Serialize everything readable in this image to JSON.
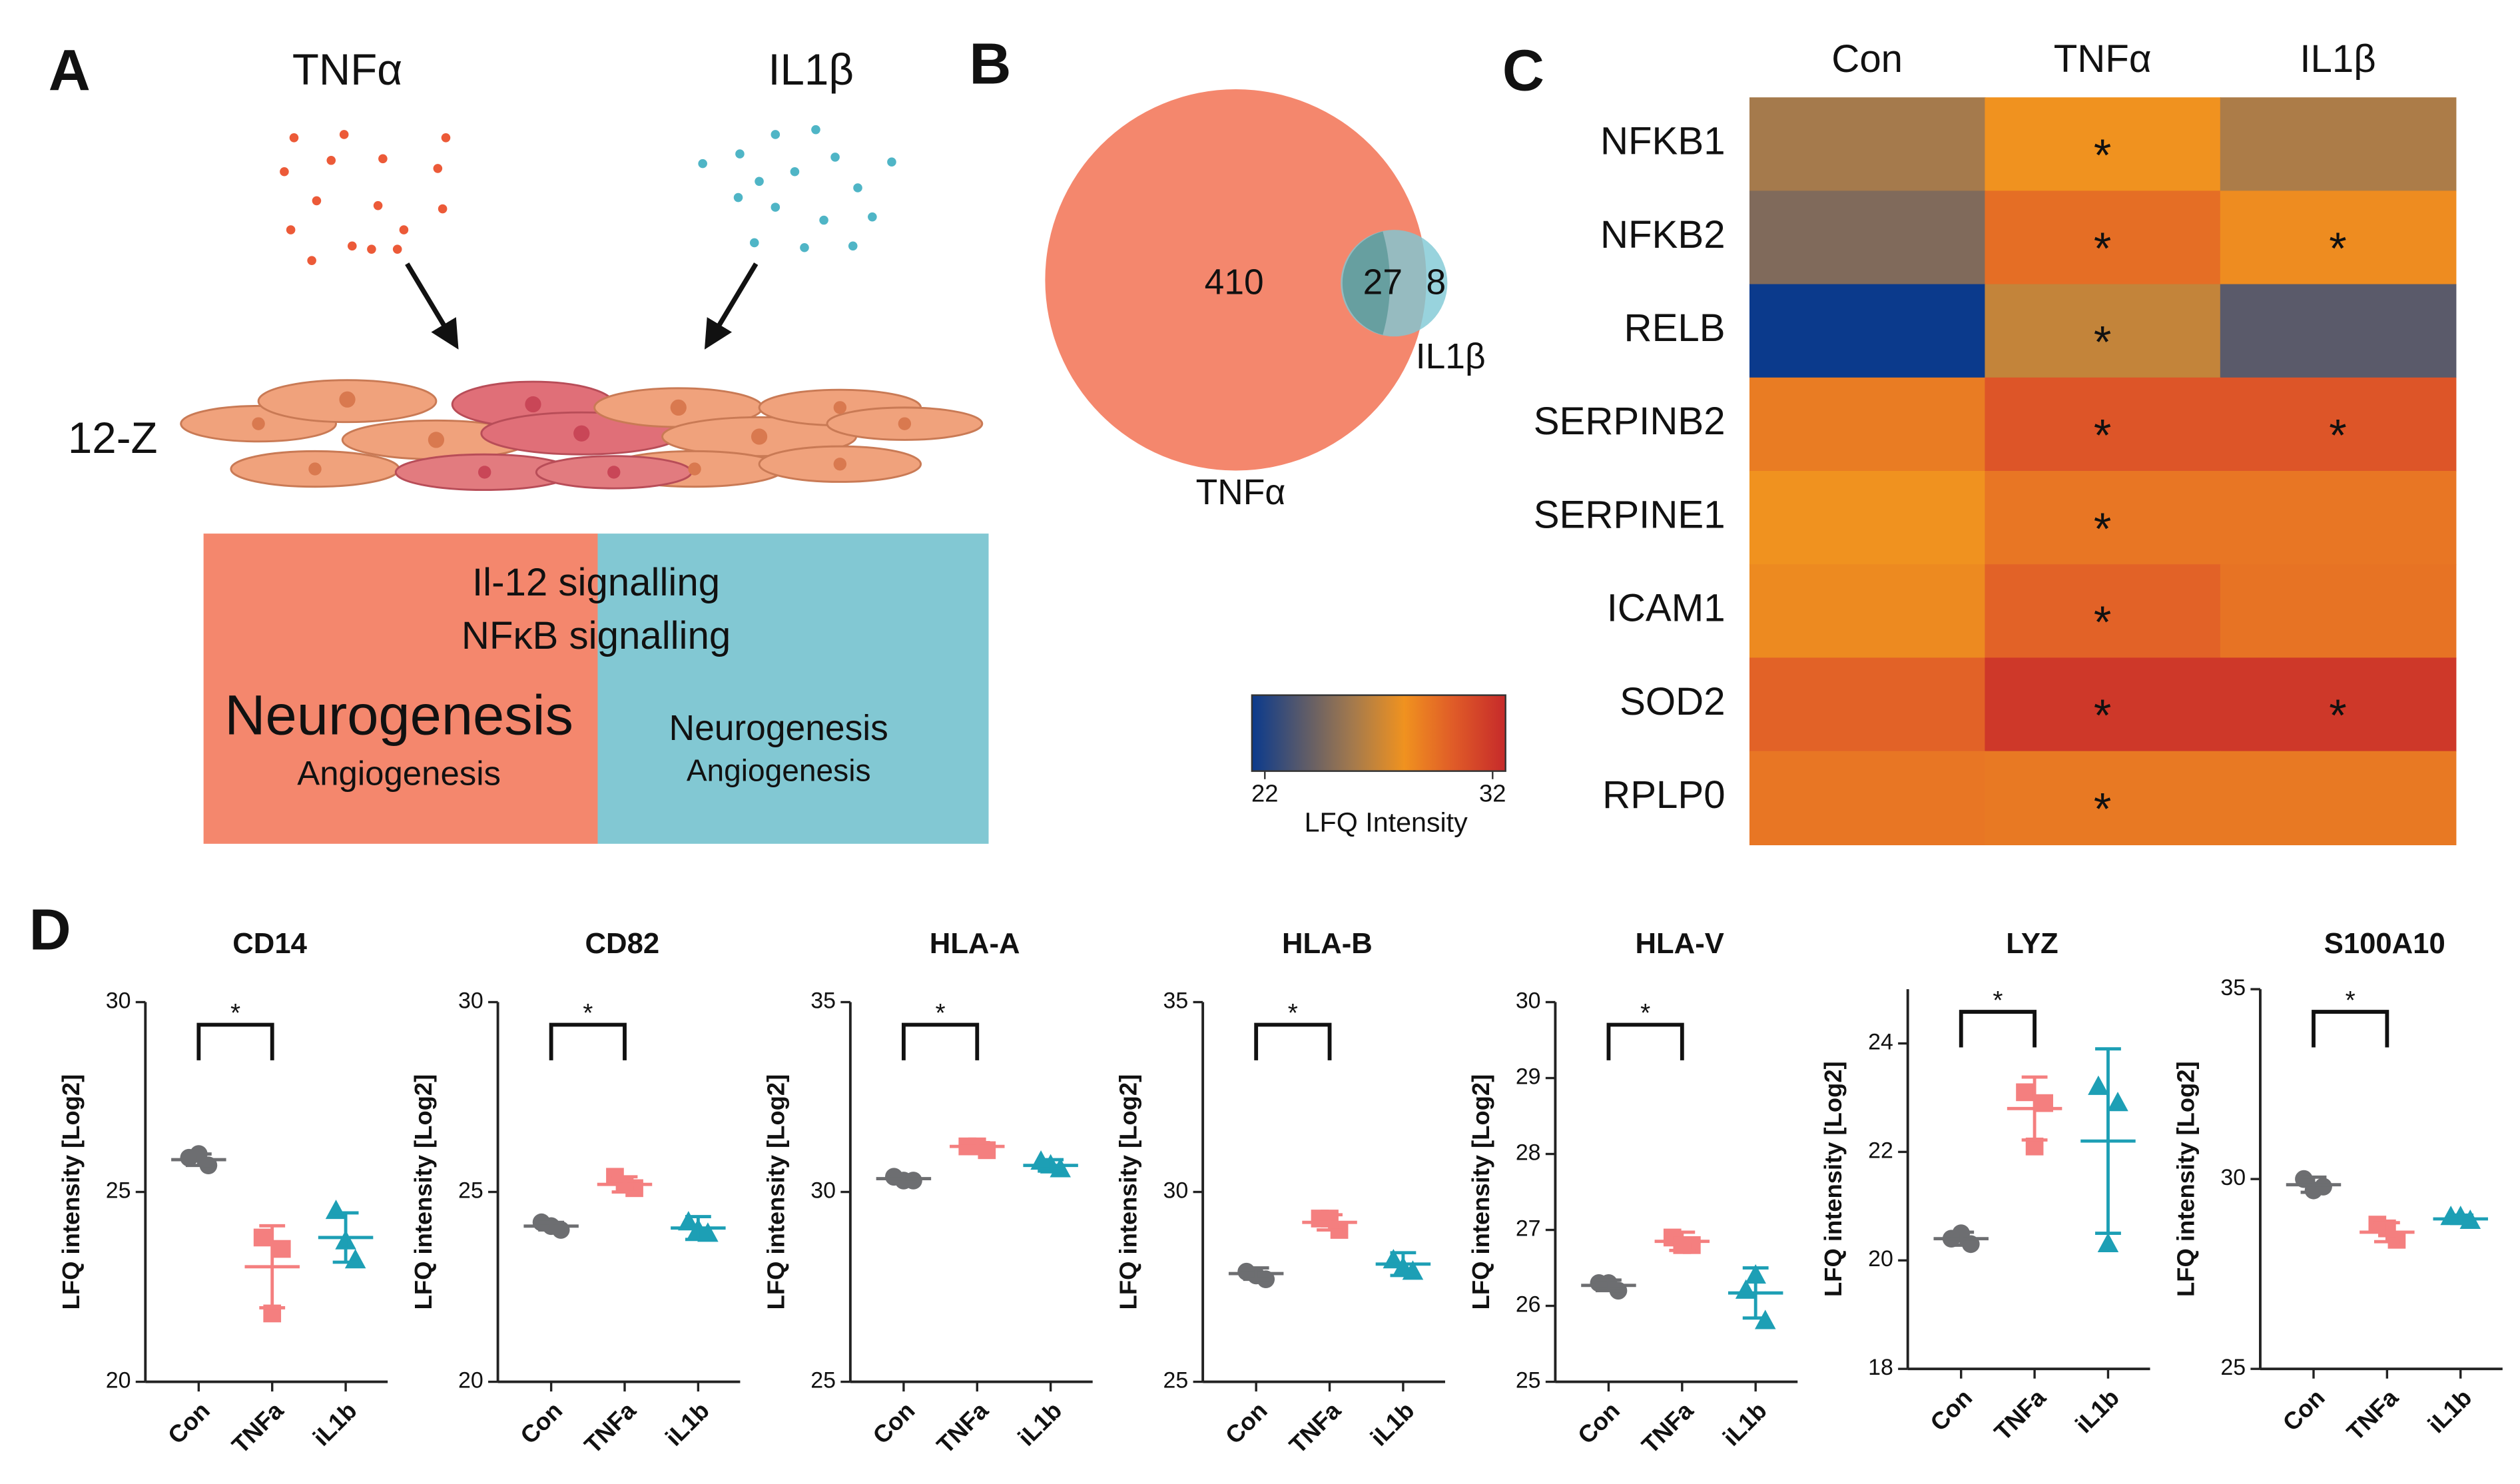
{
  "panel_labels": [
    "A",
    "B",
    "C",
    "D"
  ],
  "diagram": {
    "stimuli": [
      {
        "name": "TNFα",
        "color": "#ec5a38"
      },
      {
        "name": "IL1β",
        "color": "#4fb5c6"
      }
    ],
    "cell_line": "12-Z",
    "shared_pathways": [
      "Il-12 signalling",
      "NFκB signalling"
    ],
    "tnf_pathways": [
      "Neurogenesis",
      "Angiogenesis"
    ],
    "il1b_pathways": [
      "Neurogenesis",
      "Angiogenesis"
    ],
    "colors": [
      "#f4876d",
      "#82c8d3"
    ]
  },
  "chart_data": [
    {
      "type": "venn",
      "sets": [
        {
          "name": "TNFα",
          "color": "#f4876d"
        },
        {
          "name": "IL1β",
          "color": "#7ec8d4"
        }
      ],
      "values": [
        410,
        27,
        8
      ]
    },
    {
      "type": "heatmap",
      "columns": [
        "Con",
        "TNFα",
        "IL1β"
      ],
      "rows": [
        "NFKB1",
        "NFKB2",
        "RELB",
        "SERPINB2",
        "SERPINE1",
        "ICAM1",
        "SOD2",
        "RPLP0"
      ],
      "values": [
        [
          26.0,
          28.0,
          26.2
        ],
        [
          25.0,
          29.3,
          28.2
        ],
        [
          22.0,
          26.8,
          24.0
        ],
        [
          28.8,
          30.2,
          30.2
        ],
        [
          28.0,
          29.0,
          29.0
        ],
        [
          28.3,
          29.7,
          29.1
        ],
        [
          29.7,
          31.4,
          31.4
        ],
        [
          29.0,
          28.9,
          28.9
        ]
      ],
      "annotations": [
        [
          null,
          "*",
          null
        ],
        [
          null,
          "*",
          "*"
        ],
        [
          null,
          "*",
          null
        ],
        [
          null,
          "*",
          "*"
        ],
        [
          null,
          "*",
          null
        ],
        [
          null,
          "*",
          null
        ],
        [
          null,
          "*",
          "*"
        ],
        [
          null,
          "*",
          null
        ]
      ],
      "colorscale": [
        "#0b3a8c",
        "#5a5a6a",
        "#a57a4c",
        "#f0921f",
        "#df5a28",
        "#c62a2a"
      ],
      "zlim": [
        22,
        32
      ],
      "zticks": [
        22,
        32
      ],
      "colorbar_label": "LFQ Intensity"
    },
    {
      "type": "dot",
      "title": "CD14",
      "categories": [
        "Con",
        "TNFa",
        "iL1b"
      ],
      "ylabel": "LFQ intensity [Log2]",
      "ylim": [
        20,
        30
      ],
      "yticks": [
        20,
        25,
        30
      ],
      "bracket": {
        "label": "*",
        "categories": [
          "Con",
          "TNFa"
        ]
      },
      "series": [
        {
          "color": "#6d6e71",
          "marker": "circle",
          "values": [
            25.9,
            25.7,
            26.0
          ],
          "mean": 25.85,
          "sd": 0.15
        },
        {
          "color": "#f47f7f",
          "marker": "square",
          "values": [
            23.8,
            23.5,
            21.8
          ],
          "mean": 23.03,
          "sd": 1.08
        },
        {
          "color": "#1d9fb5",
          "marker": "triangle",
          "values": [
            24.5,
            23.2,
            23.7
          ],
          "mean": 23.8,
          "sd": 0.65
        }
      ]
    },
    {
      "type": "dot",
      "title": "CD82",
      "categories": [
        "Con",
        "TNFa",
        "iL1b"
      ],
      "ylabel": "LFQ intensity [Log2]",
      "ylim": [
        20,
        30
      ],
      "yticks": [
        20,
        25,
        30
      ],
      "bracket": {
        "label": "*",
        "categories": [
          "Con",
          "TNFa"
        ]
      },
      "series": [
        {
          "color": "#6d6e71",
          "marker": "circle",
          "values": [
            24.2,
            24.0,
            24.1
          ],
          "mean": 24.1,
          "sd": 0.1
        },
        {
          "color": "#f47f7f",
          "marker": "square",
          "values": [
            25.4,
            25.1,
            25.2
          ],
          "mean": 25.2,
          "sd": 0.2
        },
        {
          "color": "#1d9fb5",
          "marker": "triangle",
          "values": [
            24.2,
            23.9,
            24.0
          ],
          "mean": 24.05,
          "sd": 0.3
        }
      ]
    },
    {
      "type": "dot",
      "title": "HLA-A",
      "categories": [
        "Con",
        "TNFa",
        "iL1b"
      ],
      "ylabel": "LFQ intensity [Log2]",
      "ylim": [
        25,
        35
      ],
      "yticks": [
        25,
        30,
        35
      ],
      "bracket": {
        "label": "*",
        "categories": [
          "Con",
          "TNFa"
        ]
      },
      "series": [
        {
          "color": "#6d6e71",
          "marker": "circle",
          "values": [
            30.4,
            30.3,
            30.3
          ],
          "mean": 30.35,
          "sd": 0.1
        },
        {
          "color": "#f47f7f",
          "marker": "square",
          "values": [
            31.2,
            31.1,
            31.2
          ],
          "mean": 31.2,
          "sd": 0.1
        },
        {
          "color": "#1d9fb5",
          "marker": "triangle",
          "values": [
            30.8,
            30.6,
            30.7
          ],
          "mean": 30.7,
          "sd": 0.15
        }
      ]
    },
    {
      "type": "dot",
      "title": "HLA-B",
      "categories": [
        "Con",
        "TNFa",
        "iL1b"
      ],
      "ylabel": "LFQ intensity [Log2]",
      "ylim": [
        25,
        35
      ],
      "yticks": [
        25,
        30,
        35
      ],
      "bracket": {
        "label": "*",
        "categories": [
          "Con",
          "TNFa"
        ]
      },
      "series": [
        {
          "color": "#6d6e71",
          "marker": "circle",
          "values": [
            27.9,
            27.7,
            27.8
          ],
          "mean": 27.85,
          "sd": 0.15
        },
        {
          "color": "#f47f7f",
          "marker": "square",
          "values": [
            29.3,
            29.0,
            29.3
          ],
          "mean": 29.2,
          "sd": 0.2
        },
        {
          "color": "#1d9fb5",
          "marker": "triangle",
          "values": [
            28.2,
            27.9,
            28.0
          ],
          "mean": 28.1,
          "sd": 0.3
        }
      ]
    },
    {
      "type": "dot",
      "title": "HLA-V",
      "categories": [
        "Con",
        "TNFa",
        "iL1b"
      ],
      "ylabel": "LFQ intensity [Log2]",
      "ylim": [
        25,
        30
      ],
      "yticks": [
        25,
        26,
        27,
        28,
        29,
        30
      ],
      "bracket": {
        "label": "*",
        "categories": [
          "Con",
          "TNFa"
        ]
      },
      "series": [
        {
          "color": "#6d6e71",
          "marker": "circle",
          "values": [
            26.3,
            26.2,
            26.3
          ],
          "mean": 26.27,
          "sd": 0.07
        },
        {
          "color": "#f47f7f",
          "marker": "square",
          "values": [
            26.9,
            26.8,
            26.8
          ],
          "mean": 26.85,
          "sd": 0.12
        },
        {
          "color": "#1d9fb5",
          "marker": "triangle",
          "values": [
            26.2,
            25.8,
            26.4
          ],
          "mean": 26.17,
          "sd": 0.33
        }
      ]
    },
    {
      "type": "dot",
      "title": "LYZ",
      "categories": [
        "Con",
        "TNFa",
        "iL1b"
      ],
      "ylabel": "LFQ intensity [Log2]",
      "ylim": [
        18,
        25
      ],
      "yticks": [
        18,
        20,
        22,
        24
      ],
      "bracket": {
        "label": "*",
        "categories": [
          "Con",
          "TNFa"
        ]
      },
      "series": [
        {
          "color": "#6d6e71",
          "marker": "circle",
          "values": [
            20.4,
            20.3,
            20.5
          ],
          "mean": 20.4,
          "sd": 0.12
        },
        {
          "color": "#f47f7f",
          "marker": "square",
          "values": [
            23.1,
            22.9,
            22.1
          ],
          "mean": 22.8,
          "sd": 0.58
        },
        {
          "color": "#1d9fb5",
          "marker": "triangle",
          "values": [
            23.2,
            22.9,
            20.3
          ],
          "mean": 22.2,
          "sd": 1.7
        }
      ]
    },
    {
      "type": "dot",
      "title": "S100A10",
      "categories": [
        "Con",
        "TNFa",
        "iL1b"
      ],
      "ylabel": "LFQ intensity [Log2]",
      "ylim": [
        25,
        35
      ],
      "yticks": [
        25,
        30,
        35
      ],
      "bracket": {
        "label": "*",
        "categories": [
          "Con",
          "TNFa"
        ]
      },
      "series": [
        {
          "color": "#6d6e71",
          "marker": "circle",
          "values": [
            30.0,
            29.8,
            29.7
          ],
          "mean": 29.85,
          "sd": 0.2
        },
        {
          "color": "#f47f7f",
          "marker": "square",
          "values": [
            28.8,
            28.4,
            28.7
          ],
          "mean": 28.6,
          "sd": 0.25
        },
        {
          "color": "#1d9fb5",
          "marker": "triangle",
          "values": [
            29.0,
            28.9,
            29.0
          ],
          "mean": 28.95,
          "sd": 0.1
        }
      ]
    }
  ]
}
